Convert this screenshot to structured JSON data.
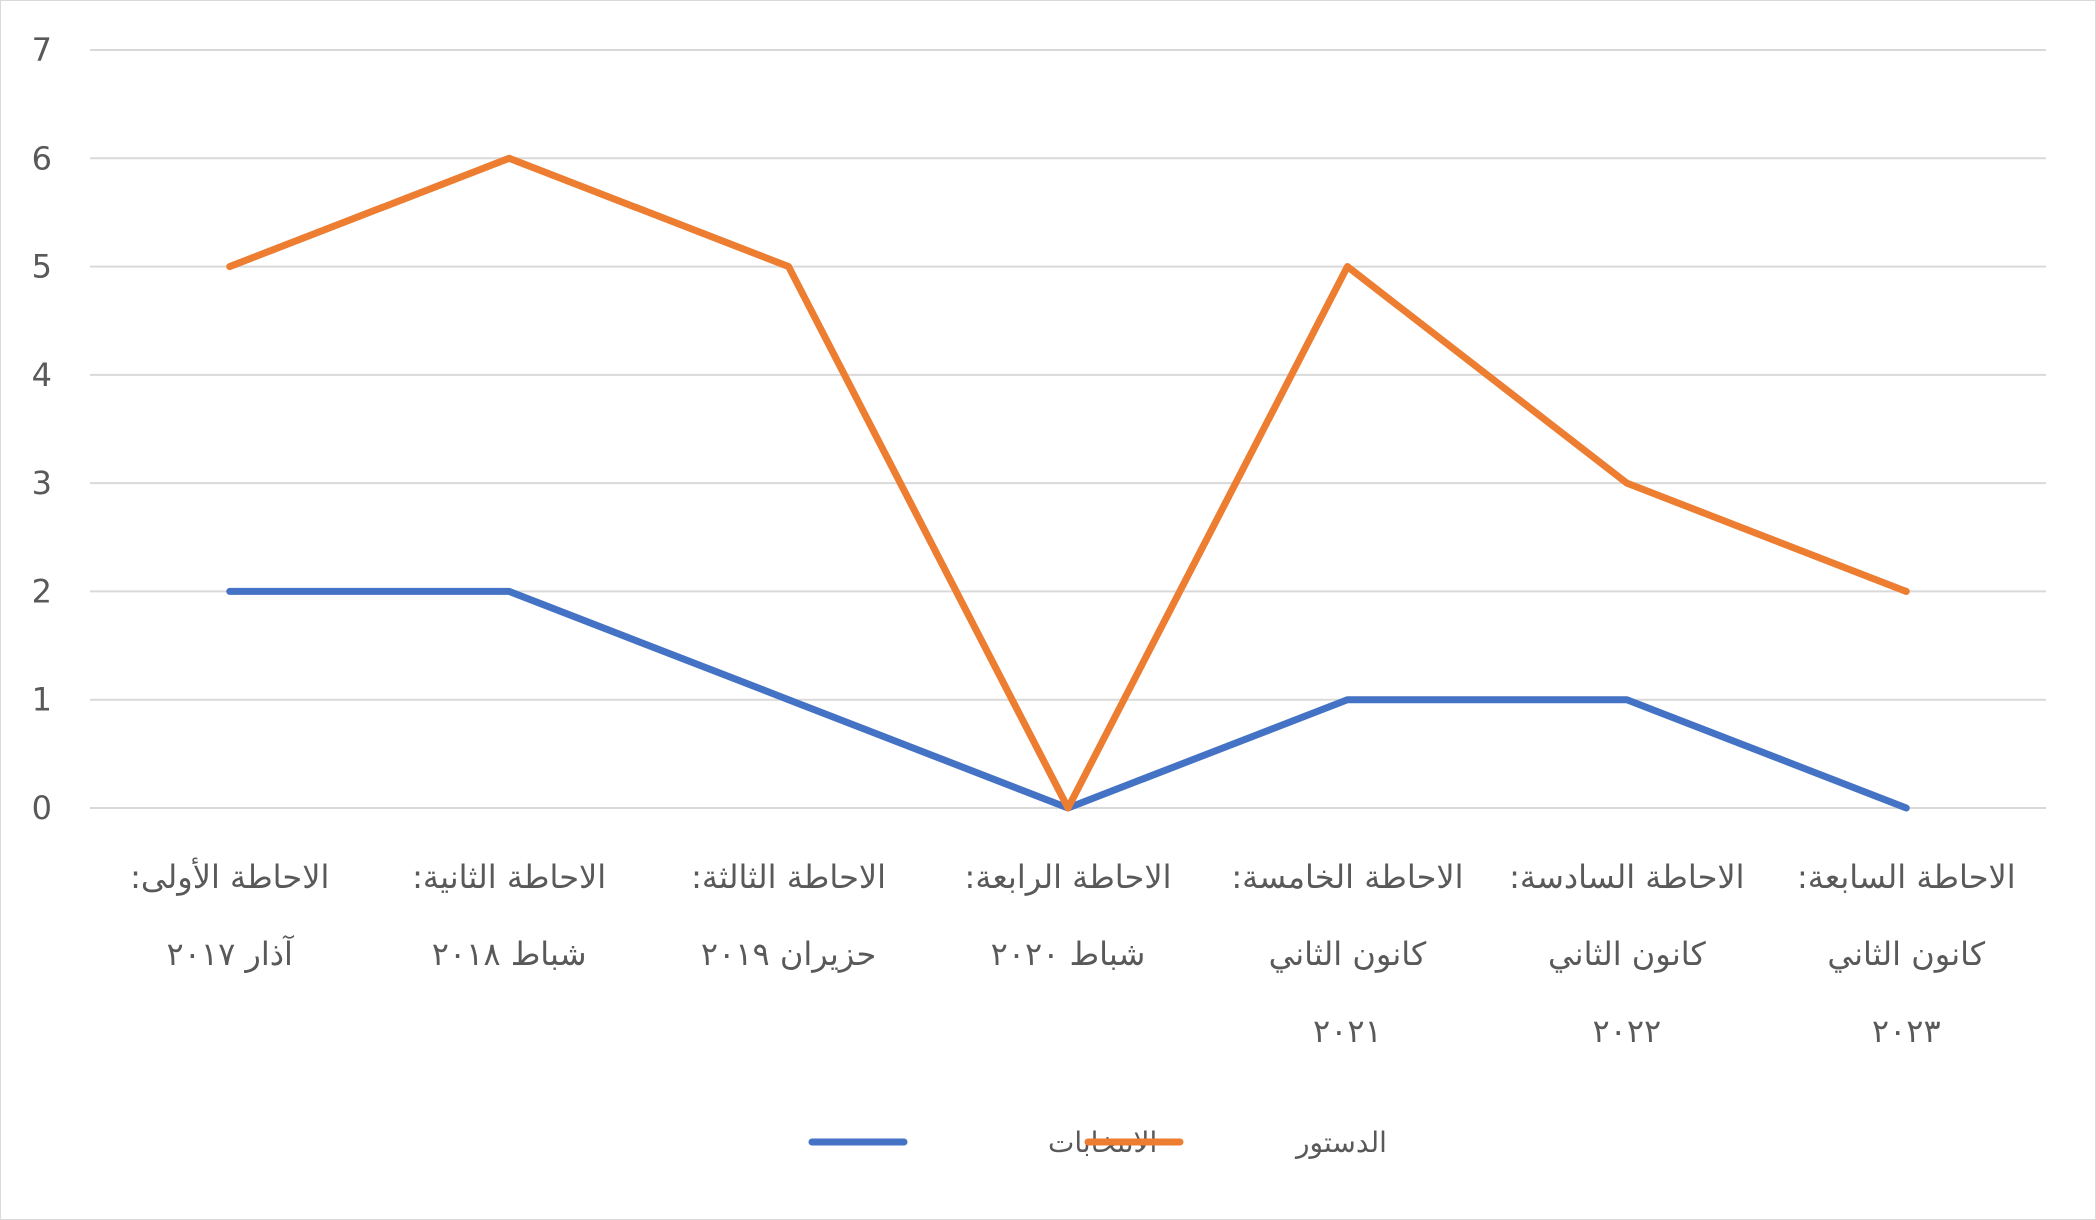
{
  "chart_data": {
    "type": "line",
    "categories": [
      [
        "الاحاطة الأولى:",
        "آذار ٢٠١٧"
      ],
      [
        "الاحاطة الثانية:",
        "شباط ٢٠١٨"
      ],
      [
        "الاحاطة الثالثة:",
        "حزيران ٢٠١٩"
      ],
      [
        "الاحاطة الرابعة:",
        "شباط ٢٠٢٠"
      ],
      [
        "الاحاطة الخامسة:",
        "كانون الثاني",
        "٢٠٢١"
      ],
      [
        "الاحاطة السادسة:",
        "كانون الثاني",
        "٢٠٢٢"
      ],
      [
        "الاحاطة السابعة:",
        "كانون الثاني",
        "٢٠٢٣"
      ]
    ],
    "series": [
      {
        "name": "الانتخابات",
        "color": "#4472C4",
        "values": [
          2,
          2,
          1,
          0,
          1,
          1,
          0
        ]
      },
      {
        "name": "الدستور",
        "color": "#ED7D31",
        "values": [
          5,
          6,
          5,
          0,
          5,
          3,
          2
        ]
      }
    ],
    "ylim": [
      0,
      7
    ],
    "yticks": [
      0,
      1,
      2,
      3,
      4,
      5,
      6,
      7
    ],
    "grid": true,
    "legend_position": "bottom"
  }
}
